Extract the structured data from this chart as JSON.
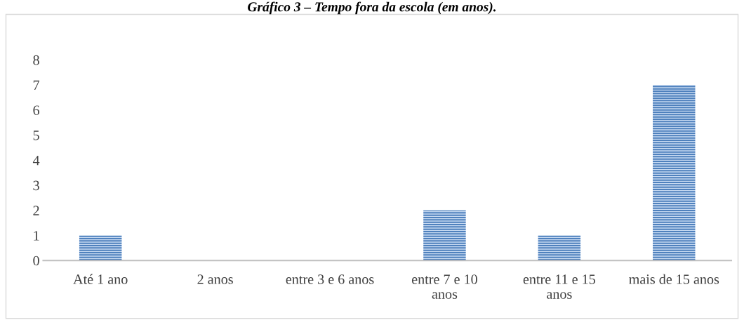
{
  "chart_data": {
    "type": "bar",
    "title": "Gráfico 3 – Tempo fora da escola (em anos).",
    "categories": [
      "Até 1 ano",
      "2 anos",
      "entre 3 e 6 anos",
      "entre 7 e 10 anos",
      "entre 11 e 15 anos",
      "mais de 15 anos"
    ],
    "values": [
      1,
      0,
      0,
      2,
      1,
      7
    ],
    "color": "#4f81bd",
    "ylim": [
      0,
      8
    ],
    "yticks": [
      0,
      1,
      2,
      3,
      4,
      5,
      6,
      7,
      8
    ],
    "grid": false,
    "legend": false
  }
}
